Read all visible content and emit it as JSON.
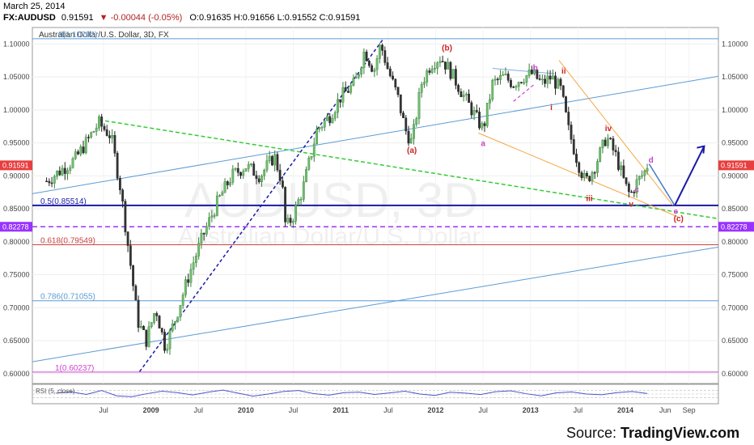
{
  "header": {
    "date": "March 25, 2014",
    "symbol": "FX:AUDUSD",
    "last": "0.91591",
    "change": "▼ -0.00044 (-0.05%)",
    "ohlc": "O:0.91635 H:0.91656 L:0.91552 C:0.91591"
  },
  "watermark": {
    "ticker": "AUDUSD, 3D",
    "name": "Australian Dollar/U.S. Dollar"
  },
  "source": "Source: TradingView.com",
  "colors": {
    "fib_blue": "#5b9bd5",
    "fib_red": "#cc4444",
    "fib_navy": "#1a1aa6",
    "fib_purple": "#9933ff",
    "fib_magenta": "#cc44cc",
    "trend_green": "#33cc33",
    "trend_orange": "#f4a742",
    "current_red": "#e83e3e",
    "candle_up": "#3a7d3a",
    "candle_down": "#222222"
  },
  "chart_data": {
    "type": "candlestick",
    "title": "Australian Dollar/U.S. Dollar, 3D, FX",
    "xlabel": "",
    "ylabel": "",
    "ylim": [
      0.585,
      1.125
    ],
    "x_ticks": [
      "Jul",
      "2009",
      "Jul",
      "2010",
      "Jul",
      "2011",
      "Jul",
      "2012",
      "Jul",
      "2013",
      "Jul",
      "2014",
      "Jun",
      "Sep"
    ],
    "y_ticks": [
      1.1,
      1.05,
      1.0,
      0.95,
      0.9,
      0.85,
      0.8,
      0.75,
      0.7,
      0.65,
      0.6
    ],
    "y_tick_labels": [
      "1.10000",
      "1.05000",
      "1.00000",
      "0.95000",
      "0.90000",
      "0.85000",
      "0.80000",
      "0.75000",
      "0.70000",
      "0.65000",
      "0.60000"
    ],
    "price_path": [
      [
        2007.9,
        0.892
      ],
      [
        2008.2,
        0.925
      ],
      [
        2008.45,
        0.98
      ],
      [
        2008.58,
        0.96
      ],
      [
        2008.68,
        0.88
      ],
      [
        2008.78,
        0.77
      ],
      [
        2008.86,
        0.68
      ],
      [
        2008.95,
        0.65
      ],
      [
        2009.05,
        0.7
      ],
      [
        2009.15,
        0.64
      ],
      [
        2009.25,
        0.68
      ],
      [
        2009.4,
        0.75
      ],
      [
        2009.55,
        0.81
      ],
      [
        2009.7,
        0.86
      ],
      [
        2009.85,
        0.9
      ],
      [
        2010.0,
        0.915
      ],
      [
        2010.15,
        0.9
      ],
      [
        2010.3,
        0.93
      ],
      [
        2010.38,
        0.89
      ],
      [
        2010.42,
        0.82
      ],
      [
        2010.5,
        0.84
      ],
      [
        2010.6,
        0.88
      ],
      [
        2010.75,
        0.97
      ],
      [
        2010.88,
        0.99
      ],
      [
        2011.0,
        1.02
      ],
      [
        2011.15,
        1.04
      ],
      [
        2011.25,
        1.09
      ],
      [
        2011.35,
        1.06
      ],
      [
        2011.42,
        1.1
      ],
      [
        2011.5,
        1.06
      ],
      [
        2011.6,
        1.02
      ],
      [
        2011.68,
        0.97
      ],
      [
        2011.75,
        0.95
      ],
      [
        2011.85,
        1.04
      ],
      [
        2011.95,
        1.07
      ],
      [
        2012.05,
        1.08
      ],
      [
        2012.15,
        1.06
      ],
      [
        2012.3,
        1.02
      ],
      [
        2012.42,
        0.99
      ],
      [
        2012.5,
        0.97
      ],
      [
        2012.6,
        1.04
      ],
      [
        2012.72,
        1.05
      ],
      [
        2012.82,
        1.04
      ],
      [
        2012.92,
        1.05
      ],
      [
        2013.02,
        1.055
      ],
      [
        2013.12,
        1.04
      ],
      [
        2013.22,
        1.05
      ],
      [
        2013.32,
        1.03
      ],
      [
        2013.4,
        0.97
      ],
      [
        2013.5,
        0.92
      ],
      [
        2013.58,
        0.89
      ],
      [
        2013.66,
        0.91
      ],
      [
        2013.75,
        0.94
      ],
      [
        2013.8,
        0.96
      ],
      [
        2013.9,
        0.93
      ],
      [
        2014.0,
        0.885
      ],
      [
        2014.05,
        0.87
      ],
      [
        2014.12,
        0.89
      ],
      [
        2014.2,
        0.905
      ],
      [
        2014.23,
        0.91591
      ]
    ],
    "current_price": 0.91591,
    "current_price_label": "0.91591",
    "line_level": 0.82278,
    "line_level_label": "0.82278",
    "fib_levels": [
      {
        "label": "0(1.10792)",
        "value": 1.10792,
        "color": "#5b9bd5"
      },
      {
        "label": "0.5(0.85514)",
        "value": 0.85514,
        "color": "#1a1aa6"
      },
      {
        "label": "0.618(0.79549)",
        "value": 0.79549,
        "color": "#cc4444"
      },
      {
        "label": "0.786(0.71055)",
        "value": 0.71055,
        "color": "#5b9bd5"
      },
      {
        "label": "1(0.60237)",
        "value": 0.60237,
        "color": "#cc44cc"
      }
    ],
    "wave_labels": [
      {
        "label": "(a)",
        "x": 2011.75,
        "y": 0.935,
        "color": "#cc2222"
      },
      {
        "label": "(b)",
        "x": 2012.12,
        "y": 1.09,
        "color": "#cc2222"
      },
      {
        "label": "a",
        "x": 2012.5,
        "y": 0.945,
        "color": "#cc44cc"
      },
      {
        "label": "b",
        "x": 2013.05,
        "y": 1.06,
        "color": "#cc44cc"
      },
      {
        "label": "ii",
        "x": 2013.35,
        "y": 1.055,
        "color": "#cc2222"
      },
      {
        "label": "i",
        "x": 2013.22,
        "y": 1.0,
        "color": "#cc2222"
      },
      {
        "label": "iii",
        "x": 2013.62,
        "y": 0.862,
        "color": "#cc2222"
      },
      {
        "label": "iv",
        "x": 2013.82,
        "y": 0.968,
        "color": "#cc2222"
      },
      {
        "label": "v",
        "x": 2014.06,
        "y": 0.853,
        "color": "#cc2222"
      },
      {
        "label": "c",
        "x": 2014.12,
        "y": 0.875,
        "color": "#cc44cc"
      },
      {
        "label": "d",
        "x": 2014.27,
        "y": 0.92,
        "color": "#cc44cc"
      },
      {
        "label": "e",
        "x": 2014.53,
        "y": 0.842,
        "color": "#cc44cc"
      },
      {
        "label": "(c)",
        "x": 2014.56,
        "y": 0.831,
        "color": "#cc2222"
      }
    ],
    "rsi": {
      "label": "RSI (5, close)",
      "values": [
        55,
        62,
        48,
        70,
        40,
        35,
        52,
        66,
        58,
        45,
        60,
        72,
        55,
        38,
        50,
        64,
        70,
        52,
        44,
        58,
        61,
        48,
        56,
        66,
        50,
        42,
        60,
        55,
        47,
        63,
        68,
        52,
        40,
        57,
        62,
        50,
        46,
        58,
        64,
        53
      ]
    }
  }
}
